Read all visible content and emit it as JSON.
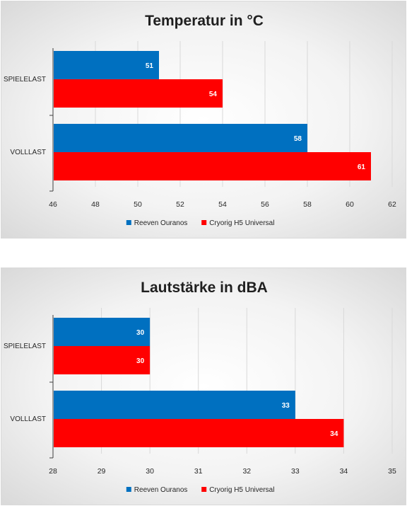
{
  "chart_data": [
    {
      "type": "bar",
      "orientation": "horizontal",
      "title": "Temperatur in °C",
      "categories": [
        "SPIELELAST",
        "VOLLLAST"
      ],
      "series": [
        {
          "name": "Reeven Ouranos",
          "values": [
            51,
            58
          ],
          "color": "#0070C0"
        },
        {
          "name": "Cryorig H5 Universal",
          "values": [
            54,
            61
          ],
          "color": "#FF0000"
        }
      ],
      "xlim": [
        46,
        62
      ],
      "xticks": [
        46,
        48,
        50,
        52,
        54,
        56,
        58,
        60,
        62
      ],
      "grid": true,
      "legend_position": "bottom"
    },
    {
      "type": "bar",
      "orientation": "horizontal",
      "title": "Lautstärke in dBA",
      "categories": [
        "SPIELELAST",
        "VOLLLAST"
      ],
      "series": [
        {
          "name": "Reeven Ouranos",
          "values": [
            30,
            33
          ],
          "color": "#0070C0"
        },
        {
          "name": "Cryorig H5 Universal",
          "values": [
            30,
            34
          ],
          "color": "#FF0000"
        }
      ],
      "xlim": [
        28,
        35
      ],
      "xticks": [
        28,
        29,
        30,
        31,
        32,
        33,
        34,
        35
      ],
      "grid": true,
      "legend_position": "bottom"
    }
  ]
}
